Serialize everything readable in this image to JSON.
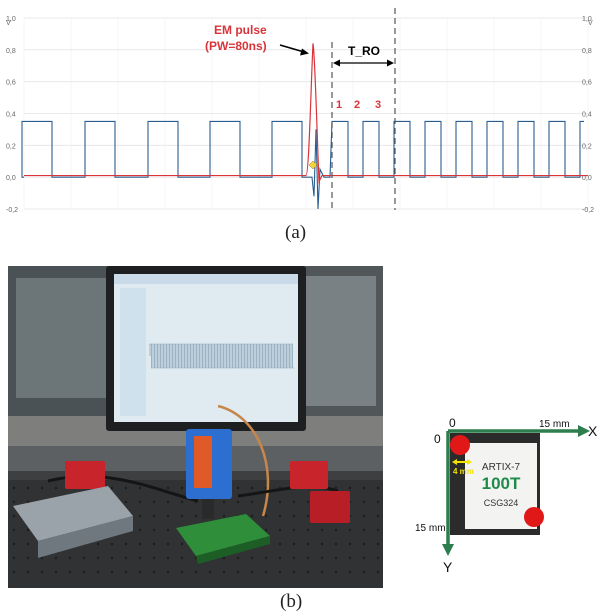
{
  "figure_a": {
    "label": "(a)",
    "chart_data": {
      "type": "line",
      "title": "",
      "xlabel": "",
      "ylabel": "",
      "ylim": [
        -0.2,
        1.0
      ],
      "y_ticks": [
        "1,0",
        "0,8",
        "0,6",
        "0,4",
        "0,2",
        "0,0",
        "-0,2"
      ],
      "y_unit": "V",
      "grid": true,
      "series": [
        {
          "color": "#2a5d8f",
          "description": "square wave oscillating between 0 and 0.35"
        },
        {
          "color": "#d9343a",
          "description": "EM pulse peaking near 0.84"
        }
      ],
      "pulse_peak": 0.84,
      "square_high": 0.35,
      "square_low": 0.0,
      "annotations": {
        "pulse_label_line1": "EM pulse",
        "pulse_label_line2": "(PW=80ns)",
        "t_ro": "T_RO",
        "count": [
          "1",
          "2",
          "3"
        ]
      }
    }
  },
  "figure_b": {
    "label": "(b)",
    "chip": {
      "line1": "ARTIX-7",
      "line2": "100T",
      "line3": "CSG324",
      "axis_x": "X",
      "axis_y": "Y",
      "origin_x": "0",
      "origin_y": "0",
      "x_extent": "15 mm",
      "y_extent": "15 mm",
      "step": "4 mm",
      "colors": {
        "axis": "#2e7d4f",
        "spot": "#e01818",
        "die": "#2b2b2b",
        "step": "#f2e300"
      }
    }
  }
}
